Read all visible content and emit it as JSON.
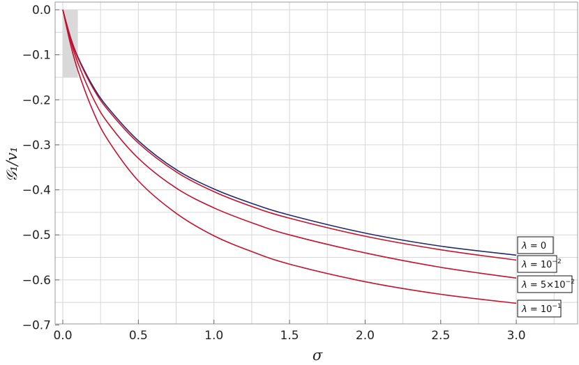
{
  "chart_data": {
    "type": "line",
    "xlabel": "σ",
    "ylabel": "𝒢₁/v₁",
    "xlim": [
      0,
      3.4
    ],
    "ylim": [
      -0.7,
      0.02
    ],
    "xticks": [
      0.0,
      0.5,
      1.0,
      1.5,
      2.0,
      2.5,
      3.0
    ],
    "xtick_labels": [
      "0.0",
      "0.5",
      "1.0",
      "1.5",
      "2.0",
      "2.5",
      "3.0"
    ],
    "yticks": [
      0.0,
      -0.1,
      -0.2,
      -0.3,
      -0.4,
      -0.5,
      -0.6,
      -0.7
    ],
    "ytick_labels": [
      "0.0",
      "−0.1",
      "−0.2",
      "−0.3",
      "−0.4",
      "−0.5",
      "−0.6",
      "−0.7"
    ],
    "grid": true,
    "shaded_region": {
      "x": [
        0,
        0.1
      ],
      "y": [
        -0.15,
        0.0
      ],
      "color": "#d9d9d9"
    },
    "series": [
      {
        "name": "λ = 0",
        "color": "#1f2a6e",
        "points": [
          [
            0,
            0
          ],
          [
            0.05,
            -0.06
          ],
          [
            0.1,
            -0.105
          ],
          [
            0.2,
            -0.17
          ],
          [
            0.3,
            -0.218
          ],
          [
            0.5,
            -0.291
          ],
          [
            0.75,
            -0.355
          ],
          [
            1.0,
            -0.398
          ],
          [
            1.25,
            -0.43
          ],
          [
            1.5,
            -0.456
          ],
          [
            2.0,
            -0.496
          ],
          [
            2.5,
            -0.525
          ],
          [
            3.0,
            -0.545
          ]
        ]
      },
      {
        "name": "λ = 10⁻²",
        "color": "#c8102e",
        "points": [
          [
            0,
            0
          ],
          [
            0.05,
            -0.062
          ],
          [
            0.1,
            -0.107
          ],
          [
            0.2,
            -0.174
          ],
          [
            0.3,
            -0.223
          ],
          [
            0.5,
            -0.296
          ],
          [
            0.75,
            -0.36
          ],
          [
            1.0,
            -0.404
          ],
          [
            1.25,
            -0.437
          ],
          [
            1.5,
            -0.463
          ],
          [
            2.0,
            -0.503
          ],
          [
            2.5,
            -0.533
          ],
          [
            3.0,
            -0.556
          ]
        ]
      },
      {
        "name": "λ = 5×10⁻²",
        "color": "#c8102e",
        "points": [
          [
            0,
            0
          ],
          [
            0.05,
            -0.066
          ],
          [
            0.1,
            -0.118
          ],
          [
            0.2,
            -0.196
          ],
          [
            0.3,
            -0.252
          ],
          [
            0.5,
            -0.33
          ],
          [
            0.75,
            -0.396
          ],
          [
            1.0,
            -0.44
          ],
          [
            1.25,
            -0.473
          ],
          [
            1.5,
            -0.5
          ],
          [
            2.0,
            -0.54
          ],
          [
            2.5,
            -0.572
          ],
          [
            3.0,
            -0.596
          ]
        ]
      },
      {
        "name": "λ = 10⁻¹",
        "color": "#c8102e",
        "points": [
          [
            0,
            0
          ],
          [
            0.05,
            -0.075
          ],
          [
            0.1,
            -0.135
          ],
          [
            0.2,
            -0.225
          ],
          [
            0.3,
            -0.29
          ],
          [
            0.5,
            -0.38
          ],
          [
            0.75,
            -0.452
          ],
          [
            1.0,
            -0.502
          ],
          [
            1.25,
            -0.537
          ],
          [
            1.5,
            -0.565
          ],
          [
            2.0,
            -0.604
          ],
          [
            2.5,
            -0.632
          ],
          [
            3.0,
            -0.652
          ]
        ]
      }
    ],
    "legend": {
      "placement": "right, at line ends",
      "entries": [
        {
          "prefix": "λ = ",
          "base": "0",
          "sup": ""
        },
        {
          "prefix": "λ = ",
          "base": "10",
          "sup": "−2"
        },
        {
          "prefix": "λ = ",
          "base": "5×10",
          "sup": "−2"
        },
        {
          "prefix": "λ = ",
          "base": "10",
          "sup": "−1"
        }
      ]
    }
  }
}
